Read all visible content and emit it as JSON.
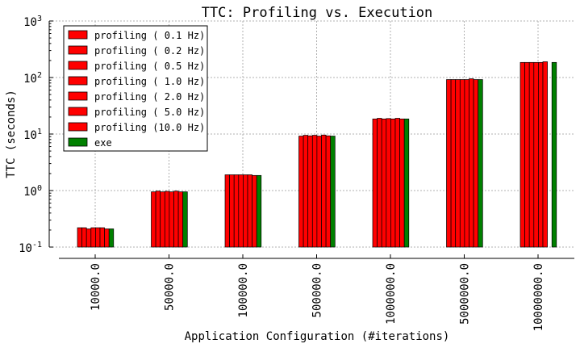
{
  "chart_data": {
    "type": "bar",
    "title": "TTC: Profiling vs. Execution",
    "xlabel": "Application Configuration (#iterations)",
    "ylabel": "TTC (seconds)",
    "yscale": "log",
    "ylim": [
      0.1,
      1000
    ],
    "grid": true,
    "legend_position": "top-left",
    "categories": [
      "10000.0",
      "50000.0",
      "100000.0",
      "500000.0",
      "1000000.0",
      "5000000.0",
      "10000000.0"
    ],
    "ytick_labels": [
      {
        "base": "10",
        "exp": "-1"
      },
      {
        "base": "10",
        "exp": "0"
      },
      {
        "base": "10",
        "exp": "1"
      },
      {
        "base": "10",
        "exp": "2"
      },
      {
        "base": "10",
        "exp": "3"
      }
    ],
    "series": [
      {
        "name": "profiling ( 0.1 Hz)",
        "color": "#ff0000",
        "values": [
          0.22,
          0.95,
          1.9,
          9.2,
          18.5,
          92,
          185
        ]
      },
      {
        "name": "profiling ( 0.2 Hz)",
        "color": "#ff0000",
        "values": [
          0.22,
          0.98,
          1.9,
          9.5,
          19,
          92,
          185
        ]
      },
      {
        "name": "profiling ( 0.5 Hz)",
        "color": "#ff0000",
        "values": [
          0.21,
          0.95,
          1.9,
          9.3,
          18.5,
          92,
          185
        ]
      },
      {
        "name": "profiling ( 1.0 Hz)",
        "color": "#ff0000",
        "values": [
          0.22,
          0.97,
          1.9,
          9.5,
          18.8,
          92,
          185
        ]
      },
      {
        "name": "profiling ( 2.0 Hz)",
        "color": "#ff0000",
        "values": [
          0.22,
          0.95,
          1.9,
          9.2,
          18.5,
          92,
          185
        ]
      },
      {
        "name": "profiling ( 5.0 Hz)",
        "color": "#ff0000",
        "values": [
          0.22,
          0.98,
          1.9,
          9.6,
          19,
          95,
          190
        ]
      },
      {
        "name": "profiling (10.0 Hz)",
        "color": "#ff0000",
        "values": [
          0.21,
          0.95,
          1.85,
          9.3,
          18.5,
          92,
          null
        ]
      },
      {
        "name": "exe",
        "color": "#008000",
        "values": [
          0.21,
          0.95,
          1.85,
          9.2,
          18.5,
          92,
          185
        ]
      }
    ]
  }
}
